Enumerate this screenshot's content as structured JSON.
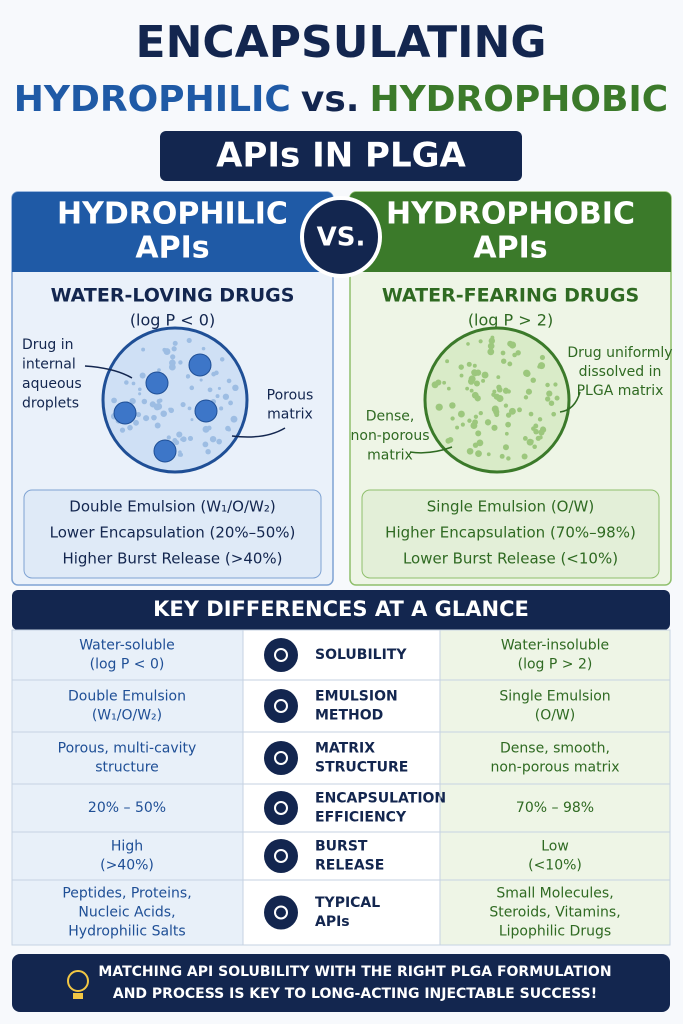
{
  "title": {
    "line1": "ENCAPSULATING",
    "hydrophilic": "HYDROPHILIC",
    "vs": "vs.",
    "hydrophobic": "HYDROPHOBIC",
    "subtitle": "APIs IN PLGA"
  },
  "vs_badge": "VS.",
  "panels": [
    {
      "header": [
        "HYDROPHILIC",
        "APIs"
      ],
      "heading": "WATER-LOVING DRUGS",
      "logp": "(log P < 0)",
      "labels": [
        [
          "Drug in",
          "internal",
          "aqueous",
          "droplets"
        ],
        [
          "Porous",
          "matrix"
        ]
      ],
      "properties": [
        "Double Emulsion (W₁/O/W₂)",
        "Lower Encapsulation (20%–50%)",
        "Higher Burst Release (>40%)"
      ]
    },
    {
      "header": [
        "HYDROPHOBIC",
        "APIs"
      ],
      "heading": "WATER-FEARING DRUGS",
      "logp": "(log P > 2)",
      "labels": [
        [
          "Drug uniformly",
          "dissolved in",
          "PLGA matrix"
        ],
        [
          "Dense,",
          "non-porous",
          "matrix"
        ]
      ],
      "properties": [
        "Single Emulsion (O/W)",
        "Higher Encapsulation (70%–98%)",
        "Lower Burst Release (<10%)"
      ]
    }
  ],
  "table": {
    "title": "KEY DIFFERENCES AT A GLANCE",
    "rows": [
      {
        "left": [
          "Water-soluble",
          "(log P < 0)"
        ],
        "label": [
          "SOLUBILITY"
        ],
        "right": [
          "Water-insoluble",
          "(log P > 2)"
        ]
      },
      {
        "left": [
          "Double Emulsion",
          "(W₁/O/W₂)"
        ],
        "label": [
          "EMULSION",
          "METHOD"
        ],
        "right": [
          "Single Emulsion",
          "(O/W)"
        ]
      },
      {
        "left": [
          "Porous, multi-cavity",
          "structure"
        ],
        "label": [
          "MATRIX",
          "STRUCTURE"
        ],
        "right": [
          "Dense, smooth,",
          "non-porous matrix"
        ]
      },
      {
        "left": [
          "20% – 50%"
        ],
        "label": [
          "ENCAPSULATION",
          "EFFICIENCY"
        ],
        "right": [
          "70% – 98%"
        ]
      },
      {
        "left": [
          "High",
          "(>40%)"
        ],
        "label": [
          "BURST",
          "RELEASE"
        ],
        "right": [
          "Low",
          "(<10%)"
        ]
      },
      {
        "left": [
          "Peptides, Proteins,",
          "Nucleic Acids,",
          "Hydrophilic Salts"
        ],
        "label": [
          "TYPICAL",
          "APIs"
        ],
        "right": [
          "Small Molecules,",
          "Steroids, Vitamins,",
          "Lipophilic Drugs"
        ]
      }
    ]
  },
  "footer": [
    "MATCHING API SOLUBILITY WITH THE RIGHT PLGA FORMULATION",
    "AND PROCESS IS KEY TO LONG-ACTING INJECTABLE SUCCESS!"
  ]
}
